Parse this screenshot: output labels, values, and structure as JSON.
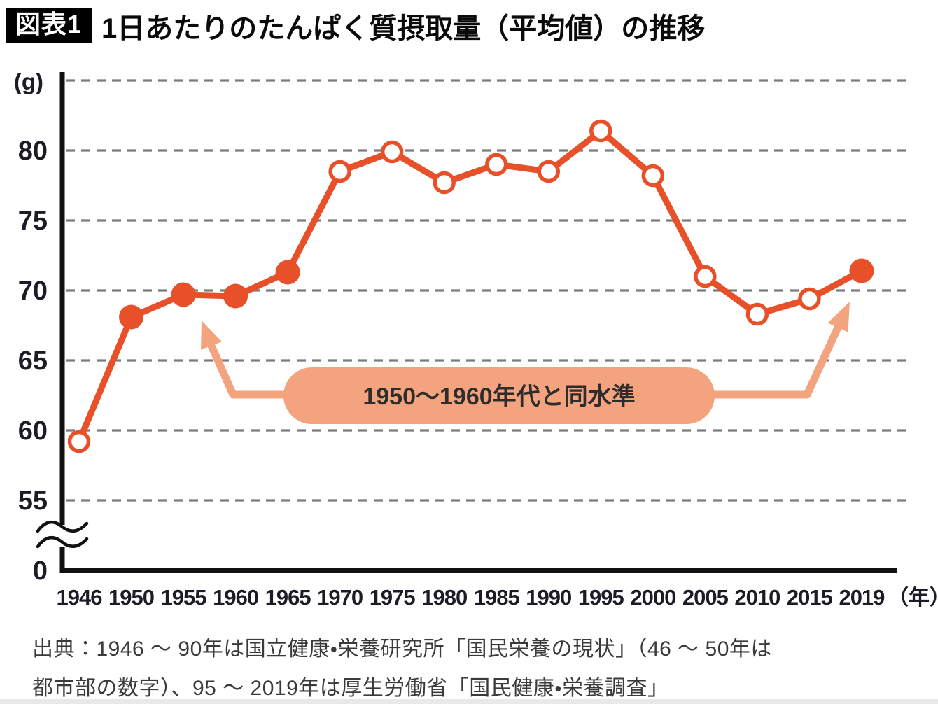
{
  "header": {
    "tag": "図表1",
    "title": "1日あたりのたんぱく質摂取量（平均値）の推移"
  },
  "chart_data": {
    "type": "line",
    "title": "1日あたりのたんぱく質摂取量（平均値）の推移",
    "ylabel": "(g)",
    "xlabel": "（年）",
    "categories": [
      "1946",
      "1950",
      "1955",
      "1960",
      "1965",
      "1970",
      "1975",
      "1980",
      "1985",
      "1990",
      "1995",
      "2000",
      "2005",
      "2010",
      "2015",
      "2019"
    ],
    "values": [
      59.2,
      68.1,
      69.7,
      69.6,
      71.3,
      78.5,
      79.9,
      77.7,
      79.0,
      78.5,
      81.4,
      78.2,
      71.0,
      68.3,
      69.4,
      71.4
    ],
    "marker_filled": [
      false,
      true,
      true,
      true,
      true,
      false,
      false,
      false,
      false,
      false,
      false,
      false,
      false,
      false,
      false,
      true
    ],
    "y_ticks": [
      80,
      75,
      70,
      65,
      60,
      55
    ],
    "y_gridlines": [
      85,
      80,
      75,
      70,
      65,
      60,
      55
    ],
    "origin_label": "0",
    "ylim": [
      55,
      85
    ],
    "axis_break": true,
    "grid": "dashed",
    "legend": "none",
    "annotation": "1950～1960年代と同水準",
    "colors": {
      "line": "#e8502a",
      "marker_open_fill": "#ffffff",
      "annotation_fill": "#f3a47e",
      "annotation_text": "#2d2d2d",
      "grid": "#7c7c7c",
      "axis": "#111111",
      "tick_text": "#1c1c26"
    }
  },
  "source": {
    "line1": "出典：1946 ～ 90年は国立健康・栄養研究所「国民栄養の現状」（46 ～ 50年は",
    "line2": "都市部の数字）、95 ～ 2019年は厚生労働省「国民健康・栄養調査」"
  }
}
